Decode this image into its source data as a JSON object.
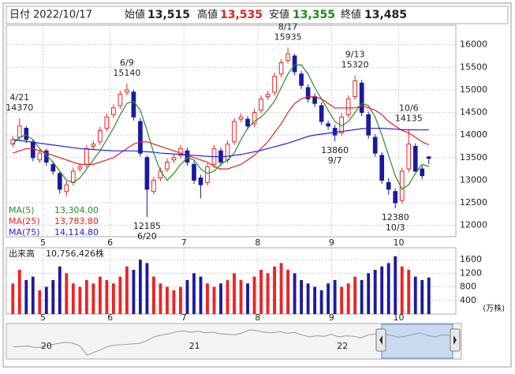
{
  "header": {
    "date_label": "日付",
    "date": "2022/10/17",
    "open_label": "始値",
    "open": "13,515",
    "high_label": "高値",
    "high": "13,535",
    "low_label": "安値",
    "low": "13,355",
    "close_label": "終値",
    "close": "13,485"
  },
  "chart_data": [
    {
      "type": "candlestick",
      "xlim": [
        0,
        63
      ],
      "xticks": [
        {
          "value": 5,
          "label": "5"
        },
        {
          "value": 15,
          "label": "6"
        },
        {
          "value": 26,
          "label": "7"
        },
        {
          "value": 37,
          "label": "8"
        },
        {
          "value": 48,
          "label": "9"
        },
        {
          "value": 58,
          "label": "10"
        }
      ],
      "ylim": [
        11750,
        16430
      ],
      "yticks": [
        12000,
        12500,
        13000,
        13500,
        14000,
        14500,
        15000,
        15500,
        16000
      ],
      "grid": true,
      "up_color": "#ee2222",
      "down_color": "#1a1aa0",
      "open": [
        13800,
        13950,
        14150,
        13850,
        13450,
        13650,
        13350,
        13150,
        12750,
        12950,
        13250,
        13350,
        13750,
        13850,
        14150,
        14450,
        14650,
        14950,
        14950,
        14300,
        13500,
        12750,
        13050,
        13250,
        13450,
        13550,
        13650,
        13350,
        13050,
        12950,
        13350,
        13650,
        13450,
        13850,
        14350,
        14350,
        14250,
        14550,
        14850,
        14950,
        15350,
        15650,
        15750,
        15350,
        15050,
        14850,
        14650,
        14250,
        14150,
        14050,
        14450,
        14850,
        15150,
        14450,
        13950,
        13550,
        12950,
        12750,
        12550,
        13250,
        13750,
        13250,
        13515
      ],
      "high": [
        13980,
        14370,
        14200,
        13900,
        13680,
        13700,
        13420,
        13200,
        12980,
        13280,
        13380,
        13780,
        13880,
        14180,
        14480,
        14680,
        14980,
        15140,
        15000,
        14380,
        13550,
        13080,
        13280,
        13480,
        13580,
        13780,
        13720,
        13420,
        13120,
        13380,
        13780,
        13720,
        13880,
        14380,
        14480,
        14420,
        14580,
        14880,
        14980,
        15380,
        15680,
        15935,
        15800,
        15420,
        15120,
        14920,
        14720,
        14320,
        14220,
        14480,
        14880,
        15320,
        15220,
        14520,
        14020,
        13620,
        13050,
        12820,
        13280,
        14135,
        13820,
        13320,
        13535
      ],
      "low": [
        13720,
        13870,
        13820,
        13420,
        13380,
        13320,
        13120,
        12700,
        12650,
        12880,
        13180,
        13280,
        13680,
        13780,
        14080,
        14380,
        14580,
        14880,
        14320,
        13520,
        12185,
        12680,
        12980,
        13180,
        13380,
        13480,
        13320,
        12920,
        12600,
        12880,
        13280,
        13320,
        13380,
        13780,
        14280,
        14120,
        14180,
        14480,
        14780,
        14880,
        15280,
        15580,
        15320,
        15020,
        14720,
        14620,
        14220,
        14120,
        13860,
        13980,
        14380,
        14780,
        14420,
        13920,
        13520,
        12920,
        12680,
        12380,
        12480,
        13180,
        13180,
        13020,
        13355
      ],
      "close": [
        13900,
        14200,
        13900,
        13500,
        13600,
        13400,
        13200,
        12800,
        12900,
        13200,
        13300,
        13700,
        13800,
        14100,
        14400,
        14600,
        14900,
        15000,
        14400,
        13600,
        12800,
        13000,
        13200,
        13400,
        13500,
        13700,
        13400,
        13000,
        12900,
        13300,
        13700,
        13400,
        13800,
        14300,
        14400,
        14200,
        14500,
        14800,
        14900,
        15300,
        15600,
        15800,
        15400,
        15100,
        14800,
        14700,
        14300,
        14200,
        14000,
        14400,
        14800,
        15200,
        14500,
        14000,
        13600,
        13000,
        12800,
        12500,
        13200,
        13800,
        13200,
        13100,
        13485
      ],
      "series": [
        {
          "name": "MA(5)",
          "value_label": "13,304.00",
          "color": "#2a8a2a",
          "values": [
            13800,
            13950,
            14000,
            13900,
            13700,
            13550,
            13400,
            13200,
            13000,
            12950,
            13050,
            13250,
            13450,
            13650,
            13900,
            14150,
            14450,
            14700,
            14750,
            14550,
            14100,
            13600,
            13200,
            13000,
            13150,
            13350,
            13500,
            13450,
            13250,
            13150,
            13200,
            13350,
            13450,
            13600,
            13900,
            14150,
            14300,
            14400,
            14550,
            14750,
            15050,
            15350,
            15550,
            15550,
            15350,
            15050,
            14800,
            14550,
            14300,
            14200,
            14300,
            14500,
            14700,
            14650,
            14400,
            14000,
            13550,
            13100,
            12800,
            12900,
            13150,
            13350,
            13304
          ]
        },
        {
          "name": "MA(25)",
          "value_label": "13,783.80",
          "color": "#e02020",
          "values": [
            13600,
            13650,
            13700,
            13700,
            13650,
            13600,
            13550,
            13500,
            13450,
            13400,
            13350,
            13350,
            13350,
            13400,
            13450,
            13500,
            13600,
            13700,
            13800,
            13850,
            13850,
            13800,
            13750,
            13700,
            13650,
            13600,
            13550,
            13500,
            13450,
            13400,
            13300,
            13250,
            13250,
            13300,
            13350,
            13450,
            13550,
            13700,
            13850,
            14050,
            14250,
            14500,
            14700,
            14800,
            14850,
            14850,
            14800,
            14700,
            14600,
            14600,
            14600,
            14600,
            14650,
            14600,
            14550,
            14450,
            14300,
            14200,
            14100,
            14050,
            13950,
            13850,
            13783.8
          ]
        },
        {
          "name": "MA(75)",
          "value_label": "14,114.80",
          "color": "#2020e0",
          "values": [
            13900,
            13880,
            13860,
            13840,
            13820,
            13800,
            13780,
            13760,
            13740,
            13720,
            13700,
            13690,
            13680,
            13670,
            13660,
            13650,
            13650,
            13650,
            13650,
            13640,
            13630,
            13620,
            13600,
            13590,
            13580,
            13570,
            13560,
            13550,
            13540,
            13530,
            13520,
            13520,
            13530,
            13550,
            13570,
            13600,
            13630,
            13660,
            13700,
            13740,
            13780,
            13820,
            13870,
            13920,
            13970,
            14000,
            14020,
            14040,
            14060,
            14080,
            14100,
            14120,
            14140,
            14150,
            14150,
            14150,
            14140,
            14130,
            14120,
            14115,
            14115,
            14115,
            14114.8
          ]
        }
      ],
      "annotations": [
        {
          "date": "4/21",
          "price": 14370
        },
        {
          "date": "6/9",
          "price": 15140
        },
        {
          "date": "8/17",
          "price": 15935
        },
        {
          "date": "9/13",
          "price": 15320
        },
        {
          "date": "10/6",
          "price": 14135
        },
        {
          "date": "9/7",
          "price": 13860
        },
        {
          "date": "6/20",
          "price": 12185
        },
        {
          "date": "10/3",
          "price": 12380
        }
      ]
    },
    {
      "type": "volume",
      "title": "出来高",
      "total": "10,756,426株",
      "unit": "(万株)",
      "xlim": [
        0,
        63
      ],
      "xticks": [
        {
          "value": 5,
          "label": "5"
        },
        {
          "value": 15,
          "label": "6"
        },
        {
          "value": 26,
          "label": "7"
        },
        {
          "value": 37,
          "label": "8"
        },
        {
          "value": 48,
          "label": "9"
        },
        {
          "value": 58,
          "label": "10"
        }
      ],
      "ylim": [
        0,
        1950
      ],
      "yticks": [
        400,
        800,
        1200,
        1600
      ],
      "grid": true,
      "values": [
        900,
        1300,
        1000,
        1100,
        700,
        800,
        1000,
        1400,
        1200,
        900,
        800,
        1000,
        900,
        1100,
        1000,
        900,
        1100,
        1400,
        1300,
        1600,
        1500,
        1100,
        900,
        800,
        700,
        800,
        1000,
        1200,
        1100,
        900,
        800,
        900,
        1000,
        1200,
        1000,
        900,
        1100,
        1300,
        1200,
        1400,
        1500,
        1300,
        1200,
        1000,
        900,
        800,
        700,
        900,
        1000,
        800,
        900,
        1100,
        1000,
        1200,
        1300,
        1400,
        1500,
        1700,
        1400,
        1300,
        1100,
        1000,
        1075.6426
      ]
    },
    {
      "type": "area",
      "xlim": [
        0,
        60
      ],
      "color": "#999999",
      "xticks": [
        {
          "value": 5,
          "label": "20"
        },
        {
          "value": 25,
          "label": "21"
        },
        {
          "value": 45,
          "label": "22"
        }
      ],
      "values": [
        21500,
        21800,
        22000,
        21200,
        21500,
        22500,
        23200,
        23800,
        23500,
        22000,
        17500,
        19000,
        20500,
        22000,
        22500,
        22700,
        23000,
        23200,
        24500,
        26500,
        27400,
        28000,
        29000,
        29500,
        28800,
        29300,
        28500,
        28800,
        28000,
        27800,
        27500,
        28500,
        30000,
        29500,
        28800,
        28500,
        29000,
        28300,
        28700,
        27500,
        26500,
        27000,
        26800,
        27800,
        26500,
        27000,
        26800,
        26000,
        27500,
        28000,
        27800,
        27300,
        26400,
        26800,
        27700,
        28500,
        27200,
        26500,
        27500,
        27100
      ]
    }
  ]
}
